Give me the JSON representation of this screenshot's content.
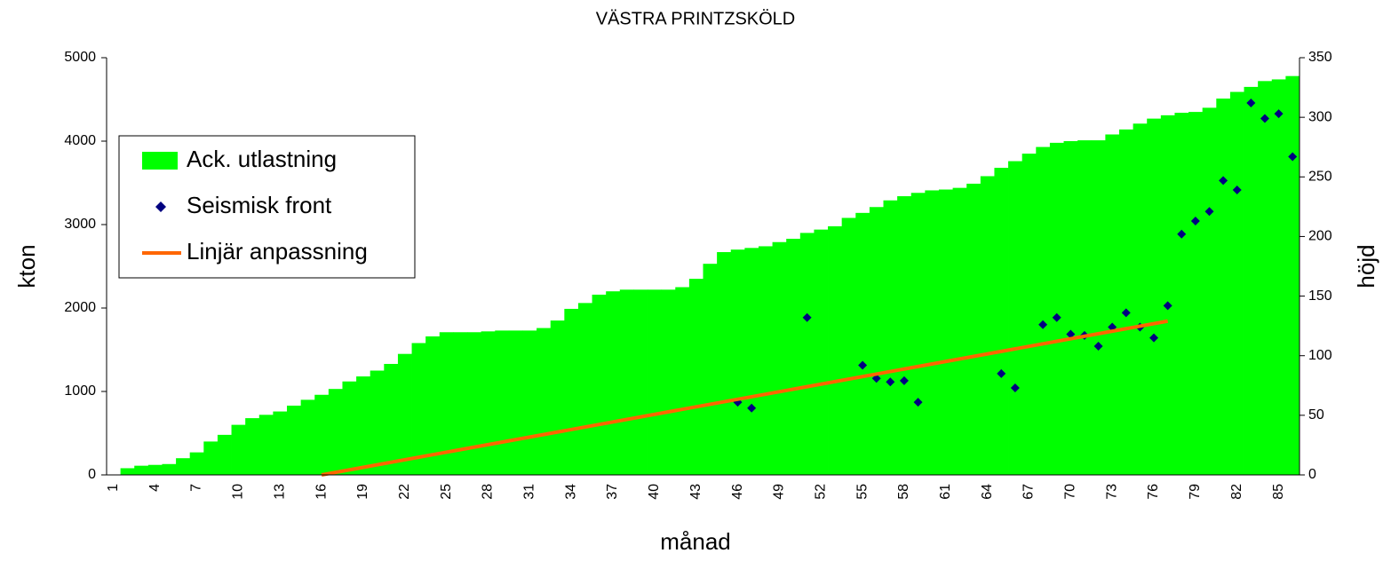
{
  "chart_data": {
    "type": "combo",
    "title": "VÄSTRA PRINTZSKÖLD",
    "xlabel": "månad",
    "ylabel": "kton",
    "y2label": "höjd",
    "categories": [
      1,
      null,
      null,
      4,
      null,
      null,
      7,
      null,
      null,
      10,
      null,
      null,
      13,
      null,
      null,
      16,
      null,
      null,
      19,
      null,
      null,
      22,
      null,
      null,
      25,
      null,
      null,
      28,
      null,
      null,
      31,
      null,
      null,
      34,
      null,
      null,
      37,
      null,
      null,
      40,
      null,
      null,
      43,
      null,
      null,
      46,
      null,
      null,
      49,
      null,
      null,
      52,
      null,
      null,
      55,
      null,
      null,
      58,
      null,
      null,
      61,
      null,
      null,
      64,
      null,
      null,
      67,
      null,
      null,
      70,
      null,
      null,
      73,
      null,
      null,
      76,
      null,
      null,
      79,
      null,
      null,
      82,
      null,
      null,
      85,
      null
    ],
    "ylim": [
      0,
      5000
    ],
    "yticks": [
      0,
      1000,
      2000,
      3000,
      4000,
      5000
    ],
    "y2lim": [
      0,
      350
    ],
    "y2ticks": [
      0,
      50,
      100,
      150,
      200,
      250,
      300,
      350
    ],
    "legend": "center left",
    "series": [
      {
        "name": "Ack. utlastning",
        "type": "bar",
        "color": "#00ff00",
        "values": [
          0,
          80,
          110,
          120,
          130,
          200,
          270,
          400,
          480,
          600,
          680,
          720,
          760,
          830,
          900,
          960,
          1030,
          1120,
          1180,
          1250,
          1330,
          1450,
          1580,
          1660,
          1710,
          1710,
          1710,
          1720,
          1730,
          1730,
          1730,
          1760,
          1850,
          1990,
          2060,
          2160,
          2200,
          2220,
          2220,
          2220,
          2220,
          2250,
          2350,
          2530,
          2670,
          2700,
          2720,
          2740,
          2790,
          2830,
          2900,
          2940,
          2980,
          3080,
          3140,
          3210,
          3290,
          3340,
          3380,
          3410,
          3420,
          3440,
          3490,
          3580,
          3680,
          3760,
          3850,
          3930,
          3980,
          4000,
          4010,
          4010,
          4080,
          4140,
          4210,
          4270,
          4310,
          4340,
          4350,
          4400,
          4510,
          4590,
          4650,
          4720,
          4740,
          4780
        ]
      },
      {
        "name": "Seismisk front",
        "type": "scatter",
        "color": "#000080",
        "axis": "y2",
        "x": [
          46,
          47,
          51,
          55,
          56,
          57,
          58,
          59,
          65,
          66,
          68,
          69,
          70,
          71,
          72,
          73,
          74,
          75,
          76,
          77,
          78,
          79,
          80,
          81,
          82,
          83,
          84,
          85,
          86
        ],
        "values": [
          61,
          56,
          132,
          92,
          81,
          78,
          79,
          61,
          85,
          73,
          126,
          132,
          118,
          117,
          108,
          124,
          136,
          124,
          115,
          142,
          202,
          213,
          221,
          247,
          239,
          312,
          299,
          303,
          267
        ]
      },
      {
        "name": "Linjär anpassning",
        "type": "line",
        "color": "#ff6600",
        "axis": "y2",
        "x": [
          16,
          77
        ],
        "values": [
          0,
          129
        ]
      }
    ]
  }
}
